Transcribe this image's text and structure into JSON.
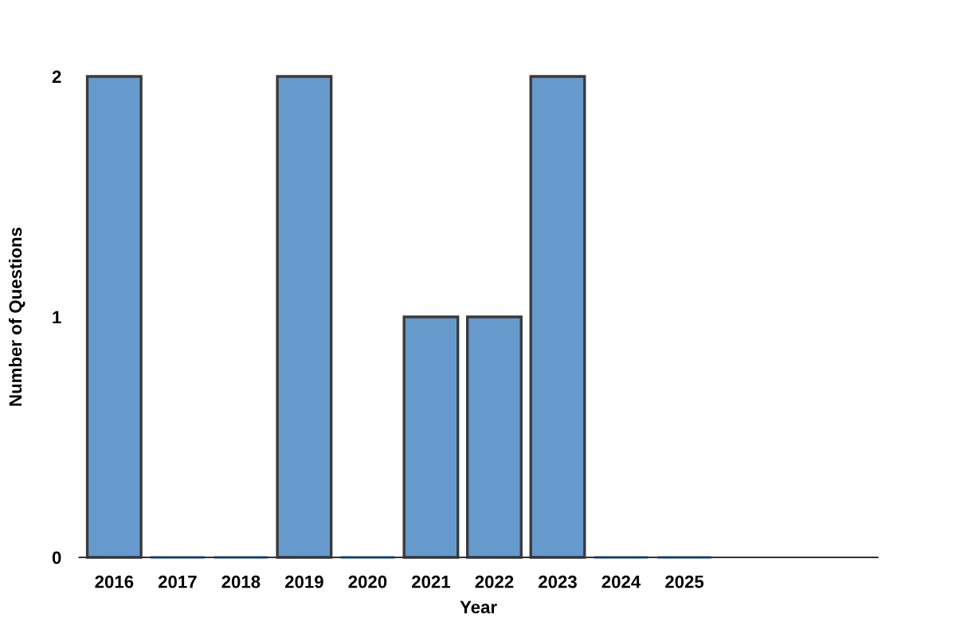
{
  "chart_data": {
    "type": "bar",
    "xlabel": "Year",
    "ylabel": "Number of Questions",
    "categories": [
      "2016",
      "2017",
      "2018",
      "2019",
      "2020",
      "2021",
      "2022",
      "2023",
      "2024",
      "2025"
    ],
    "values": [
      2,
      0,
      0,
      2,
      0,
      1,
      1,
      2,
      0,
      0
    ],
    "color": "#6699cc",
    "ylim": [
      0,
      2
    ],
    "yticks": [
      0,
      1,
      2
    ],
    "grid": false
  }
}
